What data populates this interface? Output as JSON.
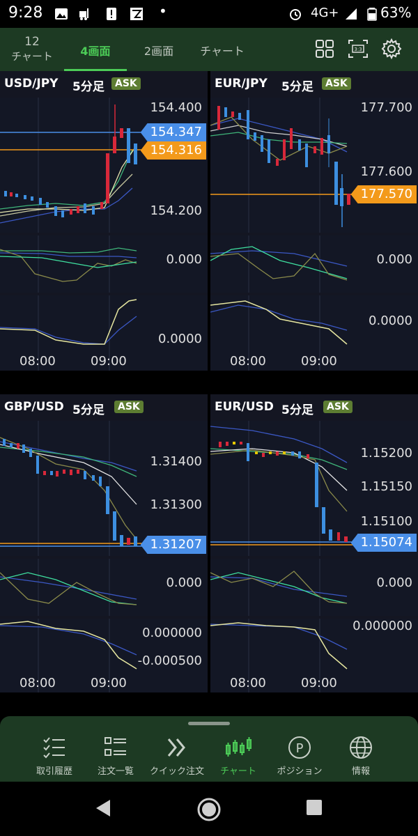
{
  "status_bar": {
    "time": "9:28",
    "dot": "•",
    "network": "4G+",
    "battery": "63%"
  },
  "top_nav": {
    "tabs": [
      {
        "id": "12",
        "line1": "12",
        "line2": "チャート"
      },
      {
        "id": "4screen",
        "label": "4画面",
        "active": true
      },
      {
        "id": "2screen",
        "label": "2画面"
      },
      {
        "id": "chart",
        "label": "チャート"
      }
    ]
  },
  "panels": [
    {
      "pair": "USD/JPY",
      "timeframe": "5分足",
      "ask": "ASK",
      "price_labels": [
        "154.400",
        "154.200"
      ],
      "badges": [
        {
          "value": "154.347",
          "color": "#4a8fe8"
        },
        {
          "value": "154.316",
          "color": "#f39a1b"
        }
      ],
      "osc1_label": "0.000",
      "osc2_label": "0.0000",
      "x_labels": [
        "08:00",
        "09:00"
      ]
    },
    {
      "pair": "EUR/JPY",
      "timeframe": "5分足",
      "ask": "ASK",
      "price_labels": [
        "177.700",
        "177.600"
      ],
      "badges": [
        {
          "value": "177.570",
          "color": "#f39a1b"
        }
      ],
      "osc1_label": "0.000",
      "osc2_label": "0.0000",
      "x_labels": [
        "08:00",
        "09:00"
      ]
    },
    {
      "pair": "GBP/USD",
      "timeframe": "5分足",
      "ask": "ASK",
      "price_labels": [
        "1.31400",
        "1.31300"
      ],
      "badges": [
        {
          "value": "1.31207",
          "color": "#4a8fe8"
        }
      ],
      "osc1_label": "0.000",
      "osc2_labels": [
        "0.000000",
        "-0.000500"
      ],
      "x_labels": [
        "08:00",
        "09:00"
      ]
    },
    {
      "pair": "EUR/USD",
      "timeframe": "5分足",
      "ask": "ASK",
      "price_labels": [
        "1.15200",
        "1.15150",
        "1.15100"
      ],
      "badges": [
        {
          "value": "1.15074",
          "color": "#4a8fe8"
        }
      ],
      "osc1_label": "0.000",
      "osc2_label": "0.000000",
      "x_labels": [
        "08:00",
        "09:00"
      ]
    }
  ],
  "bottom_nav": {
    "items": [
      {
        "label": "取引履歴",
        "icon": "checklist-icon"
      },
      {
        "label": "注文一覧",
        "icon": "list-icon"
      },
      {
        "label": "クイック注文",
        "icon": "double-chevron-icon"
      },
      {
        "label": "チャート",
        "icon": "candlestick-icon",
        "active": true
      },
      {
        "label": "ポジション",
        "icon": "position-p-icon"
      },
      {
        "label": "情報",
        "icon": "globe-icon"
      }
    ]
  },
  "colors": {
    "accent": "#4ccc57",
    "nav_bg": "#1d3a23",
    "chart_bg": "#131725",
    "up_candle": "#3d8fe0",
    "down_candle": "#d8283a",
    "badge_blue": "#4a8fe8",
    "badge_orange": "#f39a1b"
  }
}
